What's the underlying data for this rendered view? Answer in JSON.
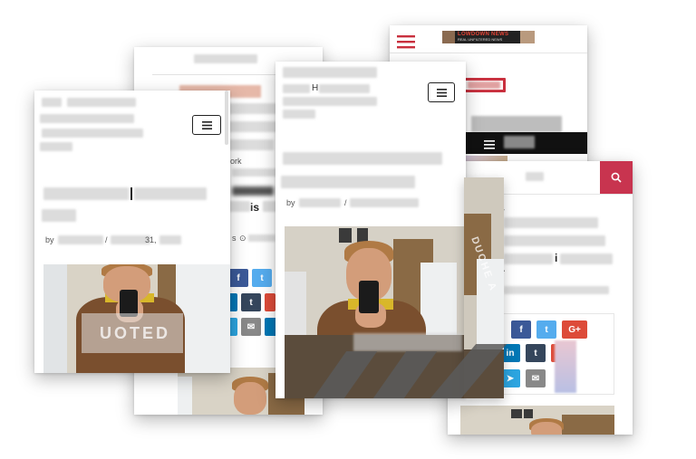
{
  "colors": {
    "accent_red": "#c9303e",
    "search_pink": "#c8344f",
    "facebook": "#3b5998",
    "twitter": "#55acee",
    "google_plus": "#dd4b39",
    "linkedin": "#0077b5",
    "tumblr": "#35465c",
    "telegram": "#2ca5e0",
    "email": "#888888"
  },
  "icons": {
    "hamburger": "hamburger-icon",
    "search": "search-icon",
    "facebook": "facebook-icon",
    "twitter": "twitter-icon",
    "google_plus": "google-plus-icon",
    "linkedin": "linkedin-icon",
    "tumblr": "tumblr-icon",
    "email": "email-icon",
    "telegram": "telegram-icon"
  },
  "share_labels": {
    "facebook": "f",
    "twitter": "t",
    "google_plus": "G+",
    "linkedin": "in",
    "tumblr": "t",
    "email": "✉",
    "telegram": "➤"
  },
  "card_front": {
    "meta_by": "by",
    "meta_slash": "/",
    "meta_date": "31,",
    "watermark": "UOTED"
  },
  "card_middle": {
    "heading_fragment": "H",
    "meta_by": "by",
    "meta_slash": "/"
  },
  "card_back_left": {
    "work_fragment": "ork",
    "title_fragment": "is",
    "meta_fragment": "s",
    "meta_icon": "⊙"
  },
  "card_top_right": {
    "logo_line1": "LOWDOWN NEWS",
    "logo_line2": "REAL UNFILTERED NEWS"
  },
  "card_right": {
    "fragment_w": "w",
    "fragment_r": "r",
    "fragment_i": "i",
    "photo_watermark": "DUCHE A"
  }
}
